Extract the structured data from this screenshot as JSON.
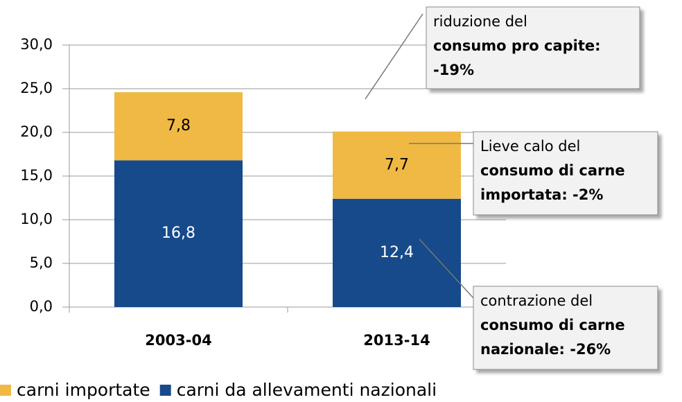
{
  "chart_data": {
    "type": "stacked_bar",
    "categories": [
      "2003-04",
      "2013-14"
    ],
    "series": [
      {
        "name": "carni da allevamenti nazionali",
        "color": "#164a8a",
        "values": [
          16.8,
          12.4
        ],
        "value_labels": [
          "16,8",
          "12,4"
        ]
      },
      {
        "name": "carni importate",
        "color": "#f0b944",
        "values": [
          7.8,
          7.7
        ],
        "value_labels": [
          "7,8",
          "7,7"
        ]
      }
    ],
    "ylim": [
      0,
      30
    ],
    "yticks": [
      {
        "value": 0,
        "label": "0,0"
      },
      {
        "value": 5,
        "label": "5,0"
      },
      {
        "value": 10,
        "label": "10,0"
      },
      {
        "value": 15,
        "label": "15,0"
      },
      {
        "value": 20,
        "label": "20,0"
      },
      {
        "value": 25,
        "label": "25,0"
      },
      {
        "value": 30,
        "label": "30,0"
      }
    ],
    "grid": true,
    "annotations": [
      {
        "lines": [
          "riduzione del",
          "consumo pro capite:",
          "-19%"
        ]
      },
      {
        "lines": [
          "Lieve calo del",
          "consumo di carne",
          "importata: -2%"
        ]
      },
      {
        "lines": [
          "contrazione del",
          "consumo di carne",
          "nazionale: -26%"
        ]
      }
    ]
  }
}
